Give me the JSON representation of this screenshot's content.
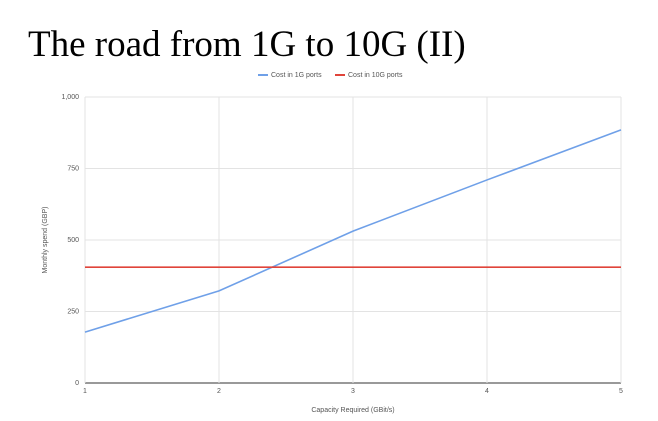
{
  "chart_data": {
    "type": "line",
    "title": "The road from 1G to 10G (II)",
    "x_label": "Capacity Required (GBit/s)",
    "y_label": "Monthly spend (GBP)",
    "x": [
      1,
      2,
      3,
      4,
      5
    ],
    "series": [
      {
        "name": "Cost in 1G ports",
        "color": "#6fa0e8",
        "values": [
          178,
          322,
          531,
          710,
          885
        ]
      },
      {
        "name": "Cost in 10G ports",
        "color": "#e0443a",
        "values": [
          405,
          405,
          405,
          405,
          405
        ]
      }
    ],
    "xlim": [
      1,
      5
    ],
    "xticks": [
      1,
      2,
      3,
      4,
      5
    ],
    "ylim": [
      0,
      1000
    ],
    "yticks": [
      0,
      250,
      500,
      750,
      {
        "value": 1000,
        "label": "1,000"
      }
    ],
    "grid": true,
    "legend": "top"
  }
}
